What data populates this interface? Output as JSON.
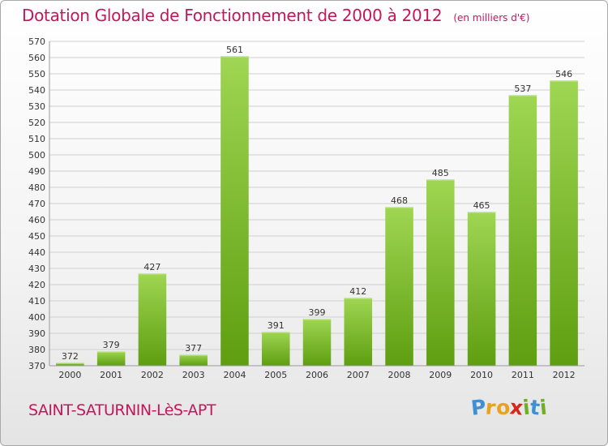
{
  "chart_data": {
    "type": "bar",
    "title": "Dotation Globale de Fonctionnement de 2000 à 2012",
    "subtitle": "(en milliers d'€)",
    "categories": [
      "2000",
      "2001",
      "2002",
      "2003",
      "2004",
      "2005",
      "2006",
      "2007",
      "2008",
      "2009",
      "2010",
      "2011",
      "2012"
    ],
    "values": [
      372,
      379,
      427,
      377,
      561,
      391,
      399,
      412,
      468,
      485,
      465,
      537,
      546
    ],
    "ylim": [
      370,
      570
    ],
    "ytick_step": 10,
    "grid": true,
    "legend": "none",
    "bar_color_top": "#9fd653",
    "bar_color_bottom": "#5e9e10"
  },
  "footer": {
    "commune": "SAINT-SATURNIN-LèS-APT",
    "logo_letters": [
      {
        "char": "P",
        "color": "#3d8fd6"
      },
      {
        "char": "r",
        "color": "#e8a21b"
      },
      {
        "char": "o",
        "color": "#e8a21b"
      },
      {
        "char": "x",
        "color": "#d9261c"
      },
      {
        "char": "i",
        "color": "#6fae25"
      },
      {
        "char": "t",
        "color": "#3d8fd6"
      },
      {
        "char": "i",
        "color": "#6fae25"
      }
    ]
  }
}
